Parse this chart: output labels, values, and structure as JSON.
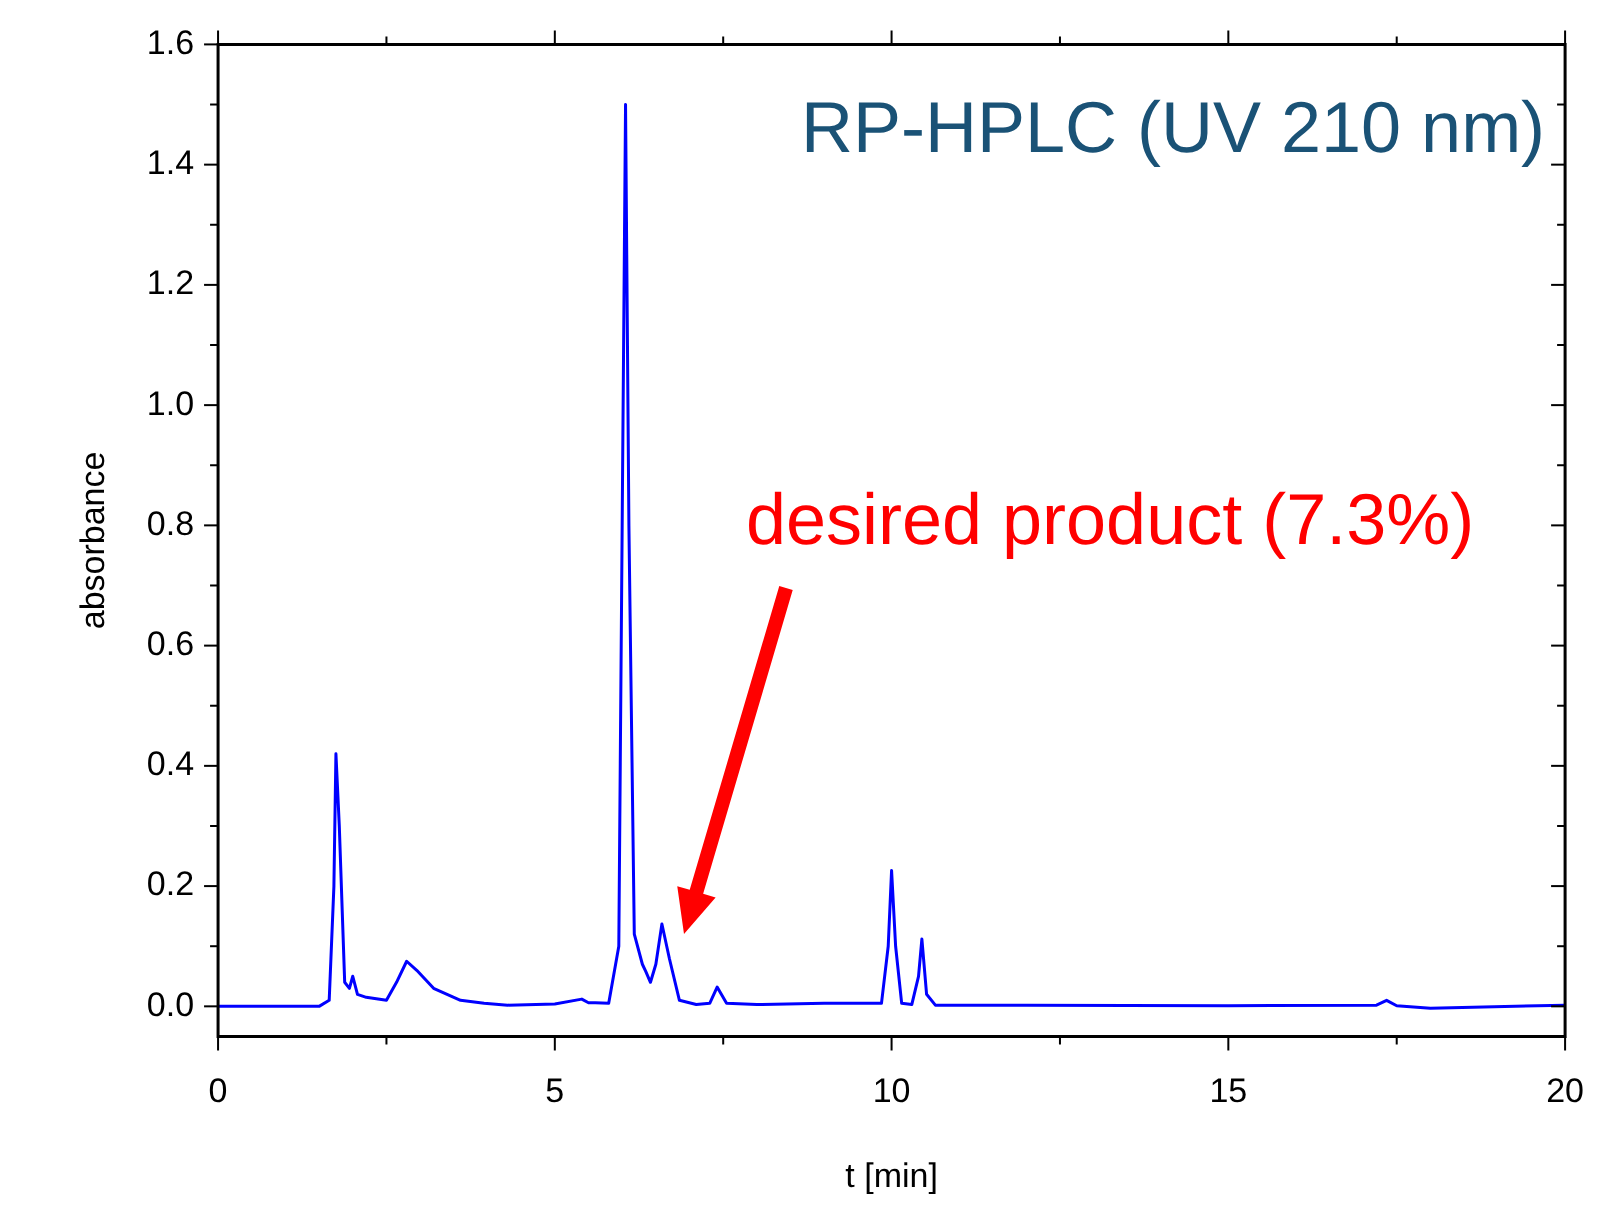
{
  "chart_data": {
    "type": "line",
    "title": "RP-HPLC (UV 210 nm)",
    "xlabel": "t [min]",
    "ylabel": "absorbance",
    "xlim": [
      0,
      20
    ],
    "xticks": [
      0,
      5,
      10,
      15,
      20
    ],
    "ylim": [
      -0.05,
      1.6
    ],
    "yticks": [
      {
        "value": 0,
        "label": "0.0"
      },
      0.2,
      0.4,
      0.6,
      0.8,
      {
        "value": 1,
        "label": "1.0"
      },
      1.2,
      1.4,
      1.6
    ],
    "grid": false,
    "legend": false,
    "marker": "none",
    "line_style": "solid",
    "annotations": [
      "desired product (7.3%)"
    ],
    "series": [
      {
        "color": "#0000ff",
        "x": [
          0,
          1.5,
          1.65,
          1.72,
          1.75,
          1.8,
          1.88,
          1.95,
          2.0,
          2.07,
          2.2,
          2.5,
          2.65,
          2.8,
          2.95,
          3.2,
          3.6,
          3.95,
          4.3,
          5.0,
          5.4,
          5.5,
          5.6,
          5.8,
          5.95,
          6.0,
          6.05,
          6.1,
          6.18,
          6.3,
          6.35,
          6.42,
          6.5,
          6.59,
          6.7,
          6.85,
          7.1,
          7.3,
          7.41,
          7.55,
          8.0,
          9.0,
          9.85,
          9.95,
          10.0,
          10.06,
          10.15,
          10.3,
          10.4,
          10.45,
          10.52,
          10.65,
          12,
          15,
          17.2,
          17.35,
          17.5,
          18,
          20
        ],
        "values": [
          0,
          0,
          0.01,
          0.2,
          0.42,
          0.3,
          0.04,
          0.03,
          0.05,
          0.02,
          0.015,
          0.01,
          0.04,
          0.075,
          0.06,
          0.03,
          0.01,
          0.005,
          0.002,
          0.004,
          0.012,
          0.006,
          0.006,
          0.005,
          0.1,
          0.8,
          1.5,
          0.8,
          0.12,
          0.07,
          0.058,
          0.04,
          0.07,
          0.137,
          0.08,
          0.01,
          0.003,
          0.005,
          0.032,
          0.005,
          0.003,
          0.005,
          0.005,
          0.1,
          0.226,
          0.1,
          0.005,
          0.003,
          0.05,
          0.112,
          0.02,
          0.002,
          0.002,
          0.001,
          0.002,
          0.01,
          0.001,
          -0.003,
          0.002
        ]
      }
    ]
  }
}
